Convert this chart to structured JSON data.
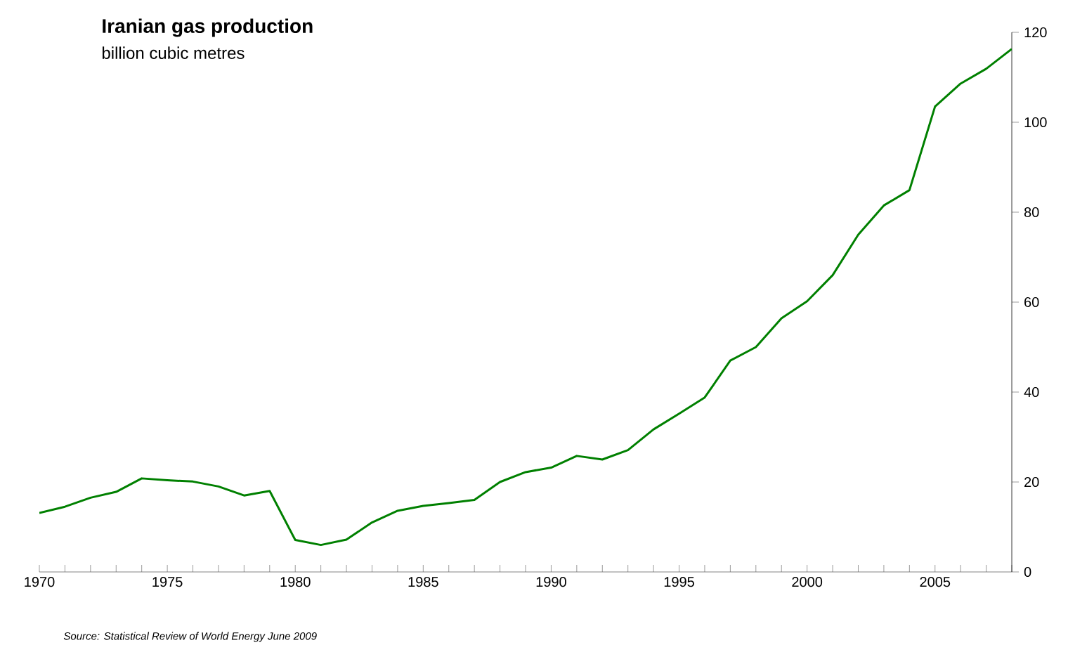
{
  "chart_data": {
    "type": "line",
    "title": "Iranian gas production",
    "subtitle": "billion cubic metres",
    "annotations": [
      "Source: Statistical Review of World Energy June 2009"
    ],
    "x": [
      1970,
      1971,
      1972,
      1973,
      1974,
      1975,
      1976,
      1977,
      1978,
      1979,
      1980,
      1981,
      1982,
      1983,
      1984,
      1985,
      1986,
      1987,
      1988,
      1989,
      1990,
      1991,
      1992,
      1993,
      1994,
      1995,
      1996,
      1997,
      1998,
      1999,
      2000,
      2001,
      2002,
      2003,
      2004,
      2005,
      2006,
      2007,
      2008
    ],
    "series": [
      {
        "color": "#008000",
        "values": [
          13.1,
          14.5,
          16.5,
          17.8,
          20.8,
          20.4,
          20.1,
          19.0,
          17.0,
          18.0,
          7.1,
          6.0,
          7.2,
          11.0,
          13.6,
          14.7,
          15.3,
          16.0,
          20.0,
          22.2,
          23.2,
          25.8,
          25.0,
          27.1,
          31.7,
          35.2,
          38.8,
          47.0,
          50.0,
          56.4,
          60.2,
          66.0,
          75.0,
          81.5,
          84.9,
          103.5,
          108.6,
          111.9,
          116.3
        ]
      }
    ],
    "xlim": [
      1970,
      2008
    ],
    "xticks": [
      1970,
      {
        "value": 1971,
        "label": null
      },
      {
        "value": 1972,
        "label": null
      },
      {
        "value": 1973,
        "label": null
      },
      {
        "value": 1974,
        "label": null
      },
      1975,
      {
        "value": 1976,
        "label": null
      },
      {
        "value": 1977,
        "label": null
      },
      {
        "value": 1978,
        "label": null
      },
      {
        "value": 1979,
        "label": null
      },
      1980,
      {
        "value": 1981,
        "label": null
      },
      {
        "value": 1982,
        "label": null
      },
      {
        "value": 1983,
        "label": null
      },
      {
        "value": 1984,
        "label": null
      },
      1985,
      {
        "value": 1986,
        "label": null
      },
      {
        "value": 1987,
        "label": null
      },
      {
        "value": 1988,
        "label": null
      },
      {
        "value": 1989,
        "label": null
      },
      1990,
      {
        "value": 1991,
        "label": null
      },
      {
        "value": 1992,
        "label": null
      },
      {
        "value": 1993,
        "label": null
      },
      {
        "value": 1994,
        "label": null
      },
      1995,
      {
        "value": 1996,
        "label": null
      },
      {
        "value": 1997,
        "label": null
      },
      {
        "value": 1998,
        "label": null
      },
      {
        "value": 1999,
        "label": null
      },
      2000,
      {
        "value": 2001,
        "label": null
      },
      {
        "value": 2002,
        "label": null
      },
      {
        "value": 2003,
        "label": null
      },
      {
        "value": 2004,
        "label": null
      },
      2005,
      {
        "value": 2006,
        "label": null
      },
      {
        "value": 2007,
        "label": null
      },
      {
        "value": 2008,
        "label": null
      }
    ],
    "ylim": [
      0,
      120
    ],
    "yticks": [
      0,
      20,
      40,
      60,
      80,
      100,
      120
    ],
    "grid": false,
    "marker": "none",
    "line_style": "solid"
  }
}
